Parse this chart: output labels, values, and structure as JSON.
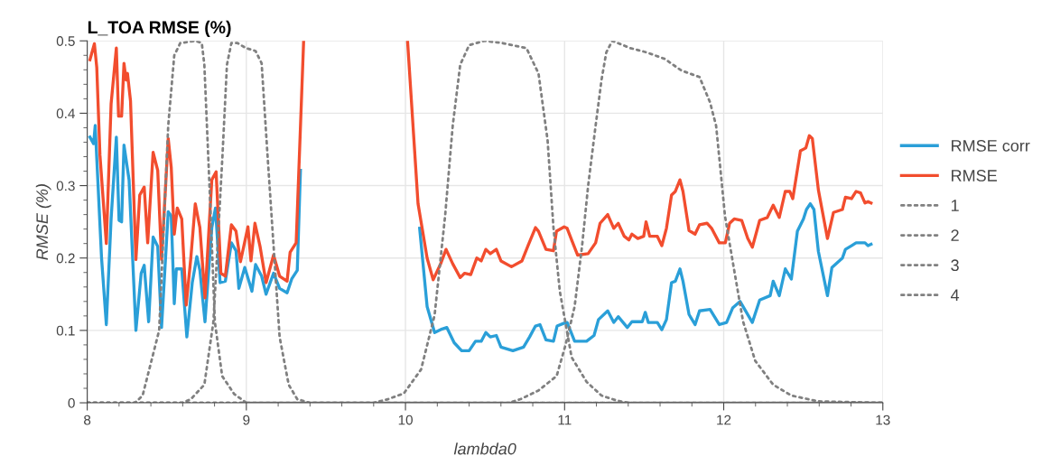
{
  "chart_data": {
    "type": "line",
    "title": "L_TOA RMSE (%)",
    "xlabel": "lambda0",
    "ylabel": "RMSE (%)",
    "xlim": [
      8,
      13
    ],
    "ylim": [
      0,
      0.5
    ],
    "xticks": [
      8,
      9,
      10,
      11,
      12,
      13
    ],
    "yticks": [
      0,
      0.1,
      0.2,
      0.3,
      0.4,
      0.5
    ],
    "grid": true,
    "legend": "right",
    "marker": "none",
    "series": [
      {
        "name": "RMSE corr",
        "color": "#2a9fd8",
        "line_style": "solid",
        "x": [
          8.017,
          8.04,
          8.05,
          8.09,
          8.12,
          8.15,
          8.183,
          8.2,
          8.216,
          8.231,
          8.263,
          8.306,
          8.339,
          8.358,
          8.386,
          8.414,
          8.443,
          8.467,
          8.509,
          8.528,
          8.547,
          8.56,
          8.594,
          8.626,
          8.66,
          8.689,
          8.708,
          8.74,
          8.783,
          8.806,
          8.835,
          8.868,
          8.906,
          8.935,
          8.953,
          8.99,
          9.035,
          9.058,
          9.096,
          9.124,
          9.171,
          9.209,
          9.256,
          9.285,
          9.32,
          9.34,
          9.36,
          9.7,
          10.013,
          10.089,
          10.136,
          10.183,
          10.23,
          10.26,
          10.306,
          10.353,
          10.4,
          10.44,
          10.476,
          10.505,
          10.533,
          10.571,
          10.6,
          10.675,
          10.742,
          10.78,
          10.817,
          10.845,
          10.883,
          10.93,
          10.953,
          10.997,
          11.016,
          11.063,
          11.138,
          11.185,
          11.213,
          11.271,
          11.309,
          11.337,
          11.394,
          11.423,
          11.488,
          11.507,
          11.526,
          11.583,
          11.611,
          11.64,
          11.672,
          11.696,
          11.725,
          11.744,
          11.782,
          11.82,
          11.848,
          11.914,
          11.972,
          12.018,
          12.056,
          12.103,
          12.132,
          12.18,
          12.226,
          12.292,
          12.311,
          12.349,
          12.387,
          12.425,
          12.463,
          12.501,
          12.52,
          12.544,
          12.567,
          12.595,
          12.652,
          12.68,
          12.746,
          12.765,
          12.803,
          12.832,
          12.888,
          12.907,
          12.926
        ],
        "values": [
          0.367,
          0.358,
          0.383,
          0.2,
          0.108,
          0.254,
          0.367,
          0.252,
          0.25,
          0.356,
          0.308,
          0.1,
          0.179,
          0.19,
          0.112,
          0.229,
          0.216,
          0.104,
          0.264,
          0.258,
          0.137,
          0.185,
          0.185,
          0.091,
          0.166,
          0.202,
          0.183,
          0.112,
          0.242,
          0.269,
          0.166,
          0.168,
          0.221,
          0.21,
          0.158,
          0.187,
          0.154,
          0.191,
          0.175,
          0.15,
          0.179,
          0.158,
          0.152,
          0.171,
          0.183,
          0.321,
          null,
          null,
          null,
          0.241,
          0.133,
          0.097,
          0.102,
          0.104,
          0.083,
          0.072,
          0.072,
          0.085,
          0.085,
          0.097,
          0.091,
          0.093,
          0.077,
          0.072,
          0.077,
          0.091,
          0.106,
          0.108,
          0.087,
          0.085,
          0.106,
          0.11,
          0.111,
          0.085,
          0.085,
          0.093,
          0.115,
          0.127,
          0.111,
          0.119,
          0.104,
          0.112,
          0.112,
          0.125,
          0.111,
          0.111,
          0.101,
          0.115,
          0.166,
          0.168,
          0.185,
          0.168,
          0.122,
          0.108,
          0.127,
          0.129,
          0.108,
          0.111,
          0.131,
          0.14,
          0.129,
          0.111,
          0.142,
          0.148,
          0.168,
          0.148,
          0.185,
          0.171,
          0.237,
          0.254,
          0.267,
          0.275,
          0.267,
          0.209,
          0.148,
          0.187,
          0.2,
          0.212,
          0.217,
          0.221,
          0.221,
          0.217,
          0.219
        ]
      },
      {
        "name": "RMSE",
        "color": "#f24d2e",
        "line_style": "solid",
        "x": [
          8.017,
          8.045,
          8.06,
          8.08,
          8.12,
          8.15,
          8.183,
          8.197,
          8.216,
          8.231,
          8.244,
          8.253,
          8.272,
          8.306,
          8.33,
          8.358,
          8.38,
          8.414,
          8.443,
          8.467,
          8.509,
          8.528,
          8.547,
          8.566,
          8.594,
          8.622,
          8.651,
          8.679,
          8.708,
          8.74,
          8.783,
          8.81,
          8.84,
          8.868,
          8.906,
          8.935,
          8.963,
          9.01,
          9.029,
          9.054,
          9.086,
          9.124,
          9.171,
          9.209,
          9.256,
          9.275,
          9.313,
          9.36,
          9.7,
          10.013,
          10.079,
          10.136,
          10.174,
          10.221,
          10.255,
          10.297,
          10.344,
          10.372,
          10.41,
          10.448,
          10.476,
          10.505,
          10.533,
          10.571,
          10.6,
          10.666,
          10.732,
          10.77,
          10.817,
          10.836,
          10.883,
          10.93,
          10.949,
          10.997,
          11.016,
          11.044,
          11.082,
          11.148,
          11.195,
          11.223,
          11.271,
          11.309,
          11.337,
          11.375,
          11.404,
          11.423,
          11.46,
          11.497,
          11.512,
          11.535,
          11.583,
          11.611,
          11.64,
          11.672,
          11.696,
          11.725,
          11.744,
          11.782,
          11.82,
          11.848,
          11.895,
          11.924,
          11.972,
          12.01,
          12.037,
          12.066,
          12.113,
          12.151,
          12.18,
          12.226,
          12.274,
          12.311,
          12.349,
          12.387,
          12.415,
          12.434,
          12.482,
          12.516,
          12.538,
          12.557,
          12.595,
          12.652,
          12.69,
          12.746,
          12.765,
          12.803,
          12.832,
          12.86,
          12.888,
          12.907,
          12.926
        ],
        "values": [
          0.474,
          0.496,
          0.463,
          0.342,
          0.22,
          0.413,
          0.49,
          0.396,
          0.396,
          0.469,
          0.446,
          0.455,
          0.417,
          0.198,
          0.287,
          0.298,
          0.221,
          0.346,
          0.321,
          0.198,
          0.365,
          0.325,
          0.233,
          0.269,
          0.254,
          0.135,
          0.2,
          0.275,
          0.242,
          0.145,
          0.308,
          0.319,
          0.179,
          0.175,
          0.246,
          0.237,
          0.195,
          0.243,
          0.196,
          0.248,
          0.216,
          0.166,
          0.204,
          0.175,
          0.168,
          0.208,
          0.221,
          0.5,
          null,
          0.5,
          0.275,
          0.2,
          0.17,
          0.192,
          0.212,
          0.192,
          0.173,
          0.179,
          0.177,
          0.2,
          0.196,
          0.212,
          0.206,
          0.212,
          0.196,
          0.188,
          0.196,
          0.217,
          0.242,
          0.237,
          0.212,
          0.21,
          0.237,
          0.243,
          0.241,
          0.225,
          0.204,
          0.206,
          0.221,
          0.248,
          0.26,
          0.241,
          0.248,
          0.23,
          0.225,
          0.233,
          0.227,
          0.23,
          0.25,
          0.23,
          0.23,
          0.217,
          0.241,
          0.287,
          0.292,
          0.308,
          0.292,
          0.238,
          0.233,
          0.246,
          0.248,
          0.241,
          0.221,
          0.221,
          0.248,
          0.254,
          0.252,
          0.227,
          0.215,
          0.252,
          0.256,
          0.273,
          0.256,
          0.292,
          0.292,
          0.282,
          0.348,
          0.352,
          0.369,
          0.365,
          0.294,
          0.227,
          0.263,
          0.267,
          0.284,
          0.282,
          0.292,
          0.29,
          0.276,
          0.278,
          0.276
        ]
      },
      {
        "name": "1",
        "color": "#808080",
        "line_style": "dotted",
        "x": [
          8,
          8.3,
          8.348,
          8.452,
          8.509,
          8.547,
          8.585,
          8.68,
          8.72,
          8.736,
          8.774,
          8.802,
          8.848,
          8.924,
          9.0,
          13
        ],
        "values": [
          0,
          0,
          0.01,
          0.1,
          0.383,
          0.48,
          0.497,
          0.5,
          0.497,
          0.467,
          0.27,
          0.112,
          0.037,
          0.012,
          0,
          0
        ]
      },
      {
        "name": "2",
        "color": "#808080",
        "line_style": "dotted",
        "x": [
          8,
          8.6,
          8.651,
          8.736,
          8.793,
          8.85,
          8.878,
          8.906,
          8.944,
          8.997,
          9.058,
          9.096,
          9.133,
          9.171,
          9.209,
          9.266,
          9.32,
          9.4,
          13
        ],
        "values": [
          0,
          0,
          0.005,
          0.025,
          0.112,
          0.342,
          0.467,
          0.497,
          0.497,
          0.49,
          0.486,
          0.469,
          0.342,
          0.217,
          0.091,
          0.025,
          0.005,
          0,
          0
        ]
      },
      {
        "name": "3",
        "color": "#808080",
        "line_style": "dotted",
        "x": [
          8,
          9.8,
          9.89,
          9.99,
          10.098,
          10.183,
          10.249,
          10.297,
          10.344,
          10.4,
          10.495,
          10.608,
          10.76,
          10.836,
          10.893,
          10.93,
          10.97,
          10.987,
          11.044,
          11.138,
          11.232,
          11.33,
          11.4,
          13
        ],
        "values": [
          0,
          0,
          0.005,
          0.013,
          0.046,
          0.121,
          0.258,
          0.383,
          0.467,
          0.494,
          0.5,
          0.497,
          0.49,
          0.455,
          0.363,
          0.242,
          0.154,
          0.133,
          0.063,
          0.029,
          0.01,
          0.003,
          0,
          0
        ]
      },
      {
        "name": "4",
        "color": "#808080",
        "line_style": "dotted",
        "x": [
          8,
          10.65,
          10.722,
          10.836,
          10.95,
          11.006,
          11.063,
          11.11,
          11.148,
          11.195,
          11.232,
          11.262,
          11.3,
          11.413,
          11.517,
          11.63,
          11.734,
          11.848,
          11.914,
          11.952,
          11.98,
          12.008,
          12.066,
          12.122,
          12.198,
          12.311,
          12.425,
          12.595,
          13
        ],
        "values": [
          0,
          0,
          0.005,
          0.017,
          0.037,
          0.08,
          0.133,
          0.217,
          0.3,
          0.383,
          0.446,
          0.484,
          0.5,
          0.49,
          0.484,
          0.475,
          0.459,
          0.45,
          0.415,
          0.383,
          0.321,
          0.258,
          0.183,
          0.112,
          0.058,
          0.025,
          0.01,
          0.002,
          0
        ]
      }
    ]
  }
}
